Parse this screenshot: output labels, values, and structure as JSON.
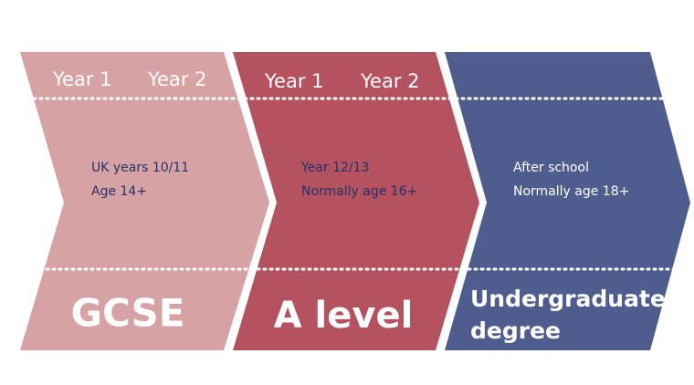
{
  "stages": [
    {
      "years": [
        "Year 1",
        "Year 2"
      ],
      "description": [
        "UK years 10/11",
        "Age 14+"
      ],
      "title": [
        "GCSE"
      ]
    },
    {
      "years": [
        "Year 1",
        "Year 2"
      ],
      "description": [
        "Year 12/13",
        "Normally age 16+"
      ],
      "title": [
        "A level"
      ]
    },
    {
      "years": [],
      "description": [
        "After school",
        "Normally age 18+"
      ],
      "title": [
        "Undergraduate",
        "degree"
      ]
    }
  ]
}
